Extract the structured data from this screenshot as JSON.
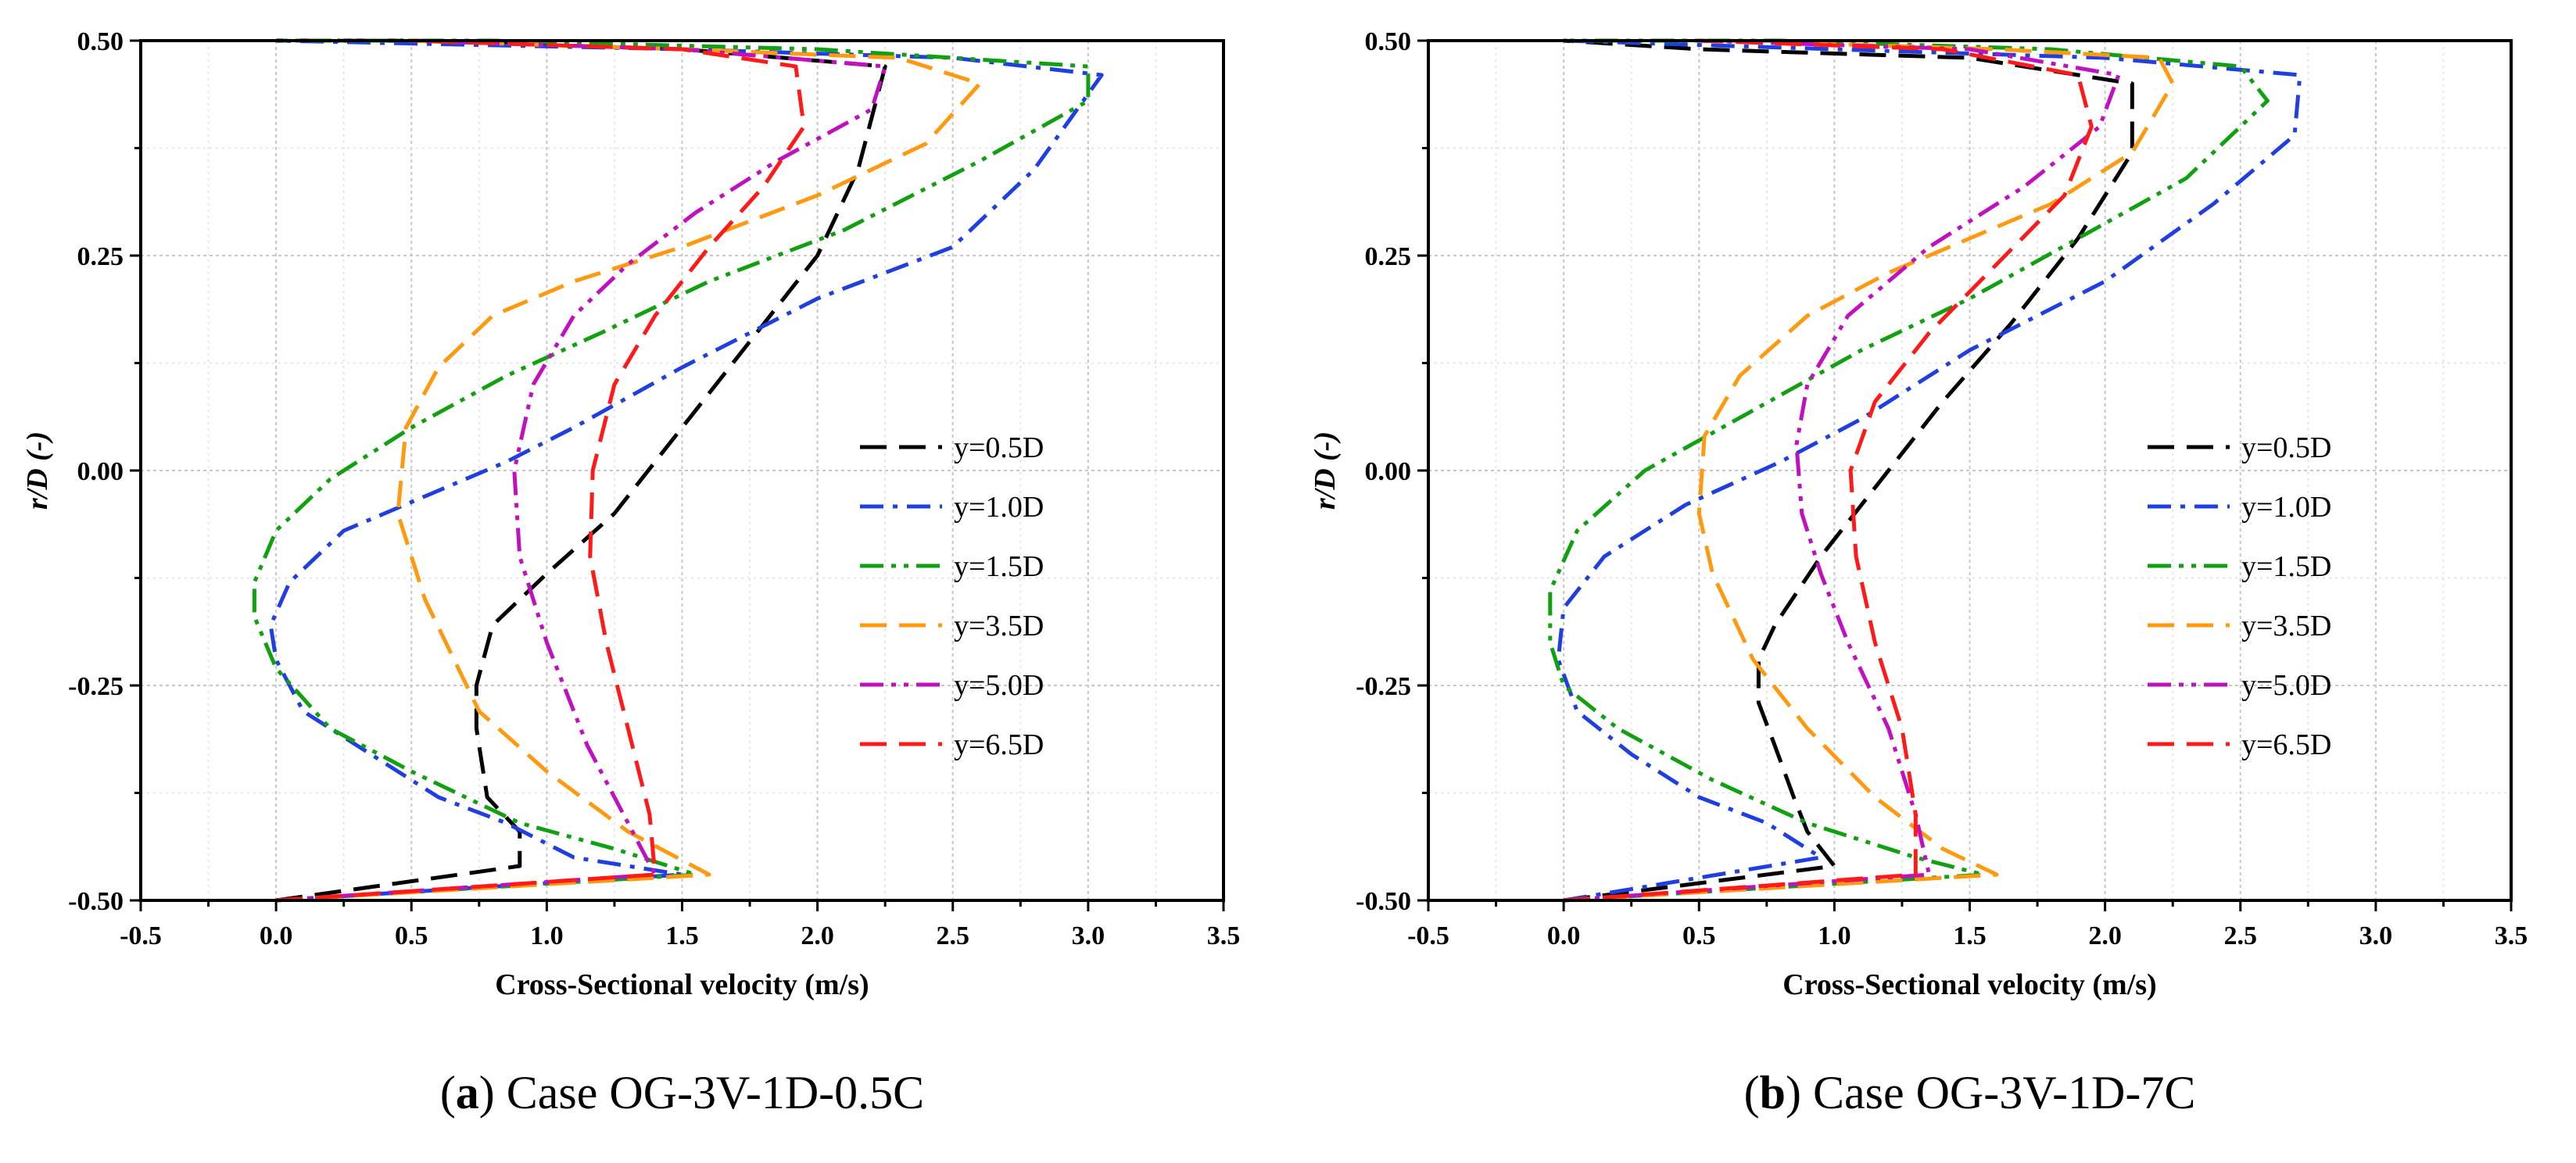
{
  "chart_data": [
    {
      "type": "line",
      "panel_letter": "a",
      "caption": "Case OG-3V-1D-0.5C",
      "xlabel": "Cross-Sectional velocity (m/s)",
      "ylabel": "r/D (-)",
      "xlim": [
        -0.5,
        3.5
      ],
      "ylim": [
        -0.5,
        0.5
      ],
      "xticks": [
        "-0.5",
        "0.0",
        "0.5",
        "1.0",
        "1.5",
        "2.0",
        "2.5",
        "3.0",
        "3.5"
      ],
      "yticks": [
        "-0.50",
        "-0.25",
        "0.00",
        "0.25",
        "0.50"
      ],
      "grid": true,
      "legend_position": "center-right",
      "series": [
        {
          "name": "y=0.5D",
          "color": "#000000",
          "dash": "dash",
          "x": [
            0.0,
            0.9,
            0.9,
            0.78,
            0.74,
            0.74,
            0.8,
            1.0,
            1.25,
            1.5,
            1.75,
            2.0,
            2.15,
            2.25,
            1.5,
            0.5,
            0.0
          ],
          "y": [
            -0.5,
            -0.46,
            -0.42,
            -0.38,
            -0.3,
            -0.25,
            -0.18,
            -0.12,
            -0.05,
            0.05,
            0.15,
            0.25,
            0.35,
            0.47,
            0.49,
            0.5,
            0.5
          ]
        },
        {
          "name": "y=1.0D",
          "color": "#1f3fe0",
          "dash": "dashdot",
          "x": [
            0.0,
            1.5,
            1.1,
            0.85,
            0.6,
            0.35,
            0.1,
            0.0,
            -0.02,
            0.05,
            0.25,
            0.55,
            0.85,
            1.1,
            1.5,
            2.0,
            2.5,
            2.8,
            3.05,
            2.5,
            1.5,
            0.0
          ],
          "y": [
            -0.5,
            -0.47,
            -0.45,
            -0.41,
            -0.38,
            -0.33,
            -0.28,
            -0.22,
            -0.18,
            -0.13,
            -0.07,
            -0.03,
            0.01,
            0.05,
            0.12,
            0.2,
            0.26,
            0.35,
            0.46,
            0.48,
            0.49,
            0.5
          ]
        },
        {
          "name": "y=1.5D",
          "color": "#10a010",
          "dash": "dashdotdot",
          "x": [
            0.0,
            1.55,
            1.25,
            0.9,
            0.5,
            0.2,
            0.0,
            -0.08,
            -0.08,
            0.0,
            0.2,
            0.5,
            0.85,
            1.2,
            1.6,
            2.1,
            2.6,
            3.0,
            3.0,
            2.0,
            0.8,
            0.0
          ],
          "y": [
            -0.5,
            -0.47,
            -0.44,
            -0.41,
            -0.35,
            -0.3,
            -0.23,
            -0.17,
            -0.13,
            -0.07,
            -0.01,
            0.05,
            0.11,
            0.16,
            0.22,
            0.28,
            0.36,
            0.43,
            0.47,
            0.49,
            0.5,
            0.5
          ]
        },
        {
          "name": "y=3.5D",
          "color": "#ff9a10",
          "dash": "dash",
          "x": [
            0.0,
            1.6,
            1.3,
            1.0,
            0.75,
            0.55,
            0.45,
            0.48,
            0.6,
            0.8,
            1.1,
            1.5,
            2.0,
            2.4,
            2.6,
            2.3,
            1.5,
            0.5
          ],
          "y": [
            -0.5,
            -0.47,
            -0.42,
            -0.35,
            -0.28,
            -0.15,
            -0.05,
            0.05,
            0.12,
            0.18,
            0.22,
            0.26,
            0.32,
            0.38,
            0.45,
            0.48,
            0.49,
            0.5
          ]
        },
        {
          "name": "y=5.0D",
          "color": "#c010c0",
          "dash": "dashdotdot",
          "x": [
            0.0,
            1.4,
            1.3,
            1.15,
            1.0,
            0.9,
            0.88,
            0.95,
            1.1,
            1.3,
            1.55,
            1.85,
            2.2,
            2.25,
            1.5,
            0.5
          ],
          "y": [
            -0.5,
            -0.47,
            -0.41,
            -0.32,
            -0.2,
            -0.1,
            0.0,
            0.1,
            0.18,
            0.24,
            0.3,
            0.36,
            0.42,
            0.47,
            0.49,
            0.5
          ]
        },
        {
          "name": "y=6.5D",
          "color": "#ff1a1a",
          "dash": "dash",
          "x": [
            0.0,
            1.4,
            1.38,
            1.3,
            1.22,
            1.16,
            1.17,
            1.25,
            1.4,
            1.6,
            1.8,
            1.95,
            1.92,
            1.5,
            0.5
          ],
          "y": [
            -0.5,
            -0.47,
            -0.4,
            -0.3,
            -0.2,
            -0.1,
            0.0,
            0.1,
            0.18,
            0.26,
            0.33,
            0.4,
            0.47,
            0.49,
            0.5
          ]
        }
      ]
    },
    {
      "type": "line",
      "panel_letter": "b",
      "caption": "Case OG-3V-1D-7C",
      "xlabel": "Cross-Sectional velocity (m/s)",
      "ylabel": "r/D (-)",
      "xlim": [
        -0.5,
        3.5
      ],
      "ylim": [
        -0.5,
        0.5
      ],
      "xticks": [
        "-0.5",
        "0.0",
        "0.5",
        "1.0",
        "1.5",
        "2.0",
        "2.5",
        "3.0",
        "3.5"
      ],
      "yticks": [
        "-0.50",
        "-0.25",
        "0.00",
        "0.25",
        "0.50"
      ],
      "grid": true,
      "legend_position": "center-right",
      "series": [
        {
          "name": "y=0.5D",
          "color": "#000000",
          "dash": "dash",
          "x": [
            0.0,
            1.0,
            0.9,
            0.85,
            0.78,
            0.72,
            0.72,
            0.78,
            0.95,
            1.15,
            1.4,
            1.65,
            1.9,
            2.1,
            2.1,
            1.5,
            0.5,
            0.0
          ],
          "y": [
            -0.5,
            -0.46,
            -0.42,
            -0.38,
            -0.32,
            -0.27,
            -0.22,
            -0.18,
            -0.1,
            -0.02,
            0.08,
            0.17,
            0.27,
            0.37,
            0.45,
            0.48,
            0.49,
            0.5
          ]
        },
        {
          "name": "y=1.0D",
          "color": "#1f3fe0",
          "dash": "dashdot",
          "x": [
            0.0,
            0.95,
            0.75,
            0.5,
            0.25,
            0.05,
            -0.02,
            0.0,
            0.15,
            0.45,
            0.8,
            1.1,
            1.5,
            2.0,
            2.4,
            2.7,
            2.72,
            2.0,
            1.0,
            0.0
          ],
          "y": [
            -0.5,
            -0.45,
            -0.41,
            -0.38,
            -0.33,
            -0.28,
            -0.22,
            -0.16,
            -0.1,
            -0.04,
            0.01,
            0.06,
            0.14,
            0.22,
            0.31,
            0.39,
            0.46,
            0.48,
            0.49,
            0.5
          ]
        },
        {
          "name": "y=1.5D",
          "color": "#10a010",
          "dash": "dashdotdot",
          "x": [
            0.0,
            1.55,
            1.3,
            0.9,
            0.55,
            0.2,
            0.0,
            -0.05,
            -0.05,
            0.05,
            0.3,
            0.7,
            1.1,
            1.5,
            1.9,
            2.3,
            2.6,
            2.5,
            1.8,
            0.8,
            0.0
          ],
          "y": [
            -0.5,
            -0.47,
            -0.45,
            -0.41,
            -0.36,
            -0.3,
            -0.25,
            -0.2,
            -0.14,
            -0.07,
            0.0,
            0.07,
            0.14,
            0.2,
            0.27,
            0.34,
            0.43,
            0.47,
            0.49,
            0.5,
            0.5
          ]
        },
        {
          "name": "y=3.5D",
          "color": "#ff9a10",
          "dash": "dash",
          "x": [
            0.0,
            1.6,
            1.4,
            1.15,
            0.9,
            0.7,
            0.55,
            0.5,
            0.52,
            0.65,
            0.9,
            1.2,
            1.5,
            1.8,
            2.1,
            2.25,
            2.2,
            1.6,
            0.6
          ],
          "y": [
            -0.5,
            -0.47,
            -0.44,
            -0.38,
            -0.3,
            -0.22,
            -0.12,
            -0.05,
            0.04,
            0.11,
            0.18,
            0.23,
            0.27,
            0.31,
            0.37,
            0.45,
            0.48,
            0.49,
            0.5
          ]
        },
        {
          "name": "y=5.0D",
          "color": "#c010c0",
          "dash": "dashdotdot",
          "x": [
            0.0,
            1.35,
            1.3,
            1.2,
            1.05,
            0.95,
            0.88,
            0.86,
            0.9,
            1.05,
            1.35,
            1.7,
            1.98,
            2.05,
            1.5,
            0.5
          ],
          "y": [
            -0.5,
            -0.47,
            -0.4,
            -0.3,
            -0.2,
            -0.12,
            -0.05,
            0.03,
            0.1,
            0.18,
            0.26,
            0.33,
            0.4,
            0.46,
            0.49,
            0.5
          ]
        },
        {
          "name": "y=6.5D",
          "color": "#ff1a1a",
          "dash": "dash",
          "x": [
            0.0,
            1.3,
            1.3,
            1.25,
            1.15,
            1.08,
            1.06,
            1.15,
            1.35,
            1.6,
            1.85,
            1.95,
            1.9,
            1.4,
            0.5
          ],
          "y": [
            -0.5,
            -0.47,
            -0.4,
            -0.3,
            -0.2,
            -0.1,
            0.0,
            0.08,
            0.16,
            0.24,
            0.32,
            0.4,
            0.46,
            0.49,
            0.5
          ]
        }
      ]
    }
  ]
}
